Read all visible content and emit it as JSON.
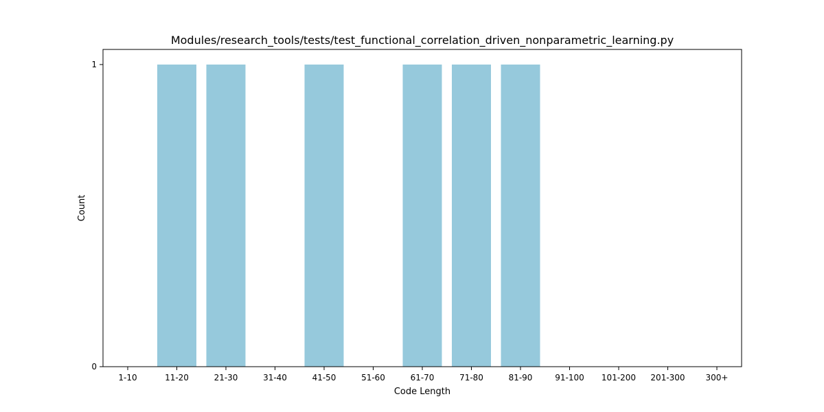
{
  "chart_data": {
    "type": "bar",
    "title": "Modules/research_tools/tests/test_functional_correlation_driven_nonparametric_learning.py",
    "xlabel": "Code Length",
    "ylabel": "Count",
    "categories": [
      "1-10",
      "11-20",
      "21-30",
      "31-40",
      "41-50",
      "51-60",
      "61-70",
      "71-80",
      "81-90",
      "91-100",
      "101-200",
      "201-300",
      "300+"
    ],
    "values": [
      0,
      1,
      1,
      0,
      1,
      0,
      1,
      1,
      1,
      0,
      0,
      0,
      0
    ],
    "ylim": [
      0,
      1
    ],
    "yticks": [
      0,
      1
    ],
    "grid": false,
    "bar_color": "#96c9dc"
  }
}
